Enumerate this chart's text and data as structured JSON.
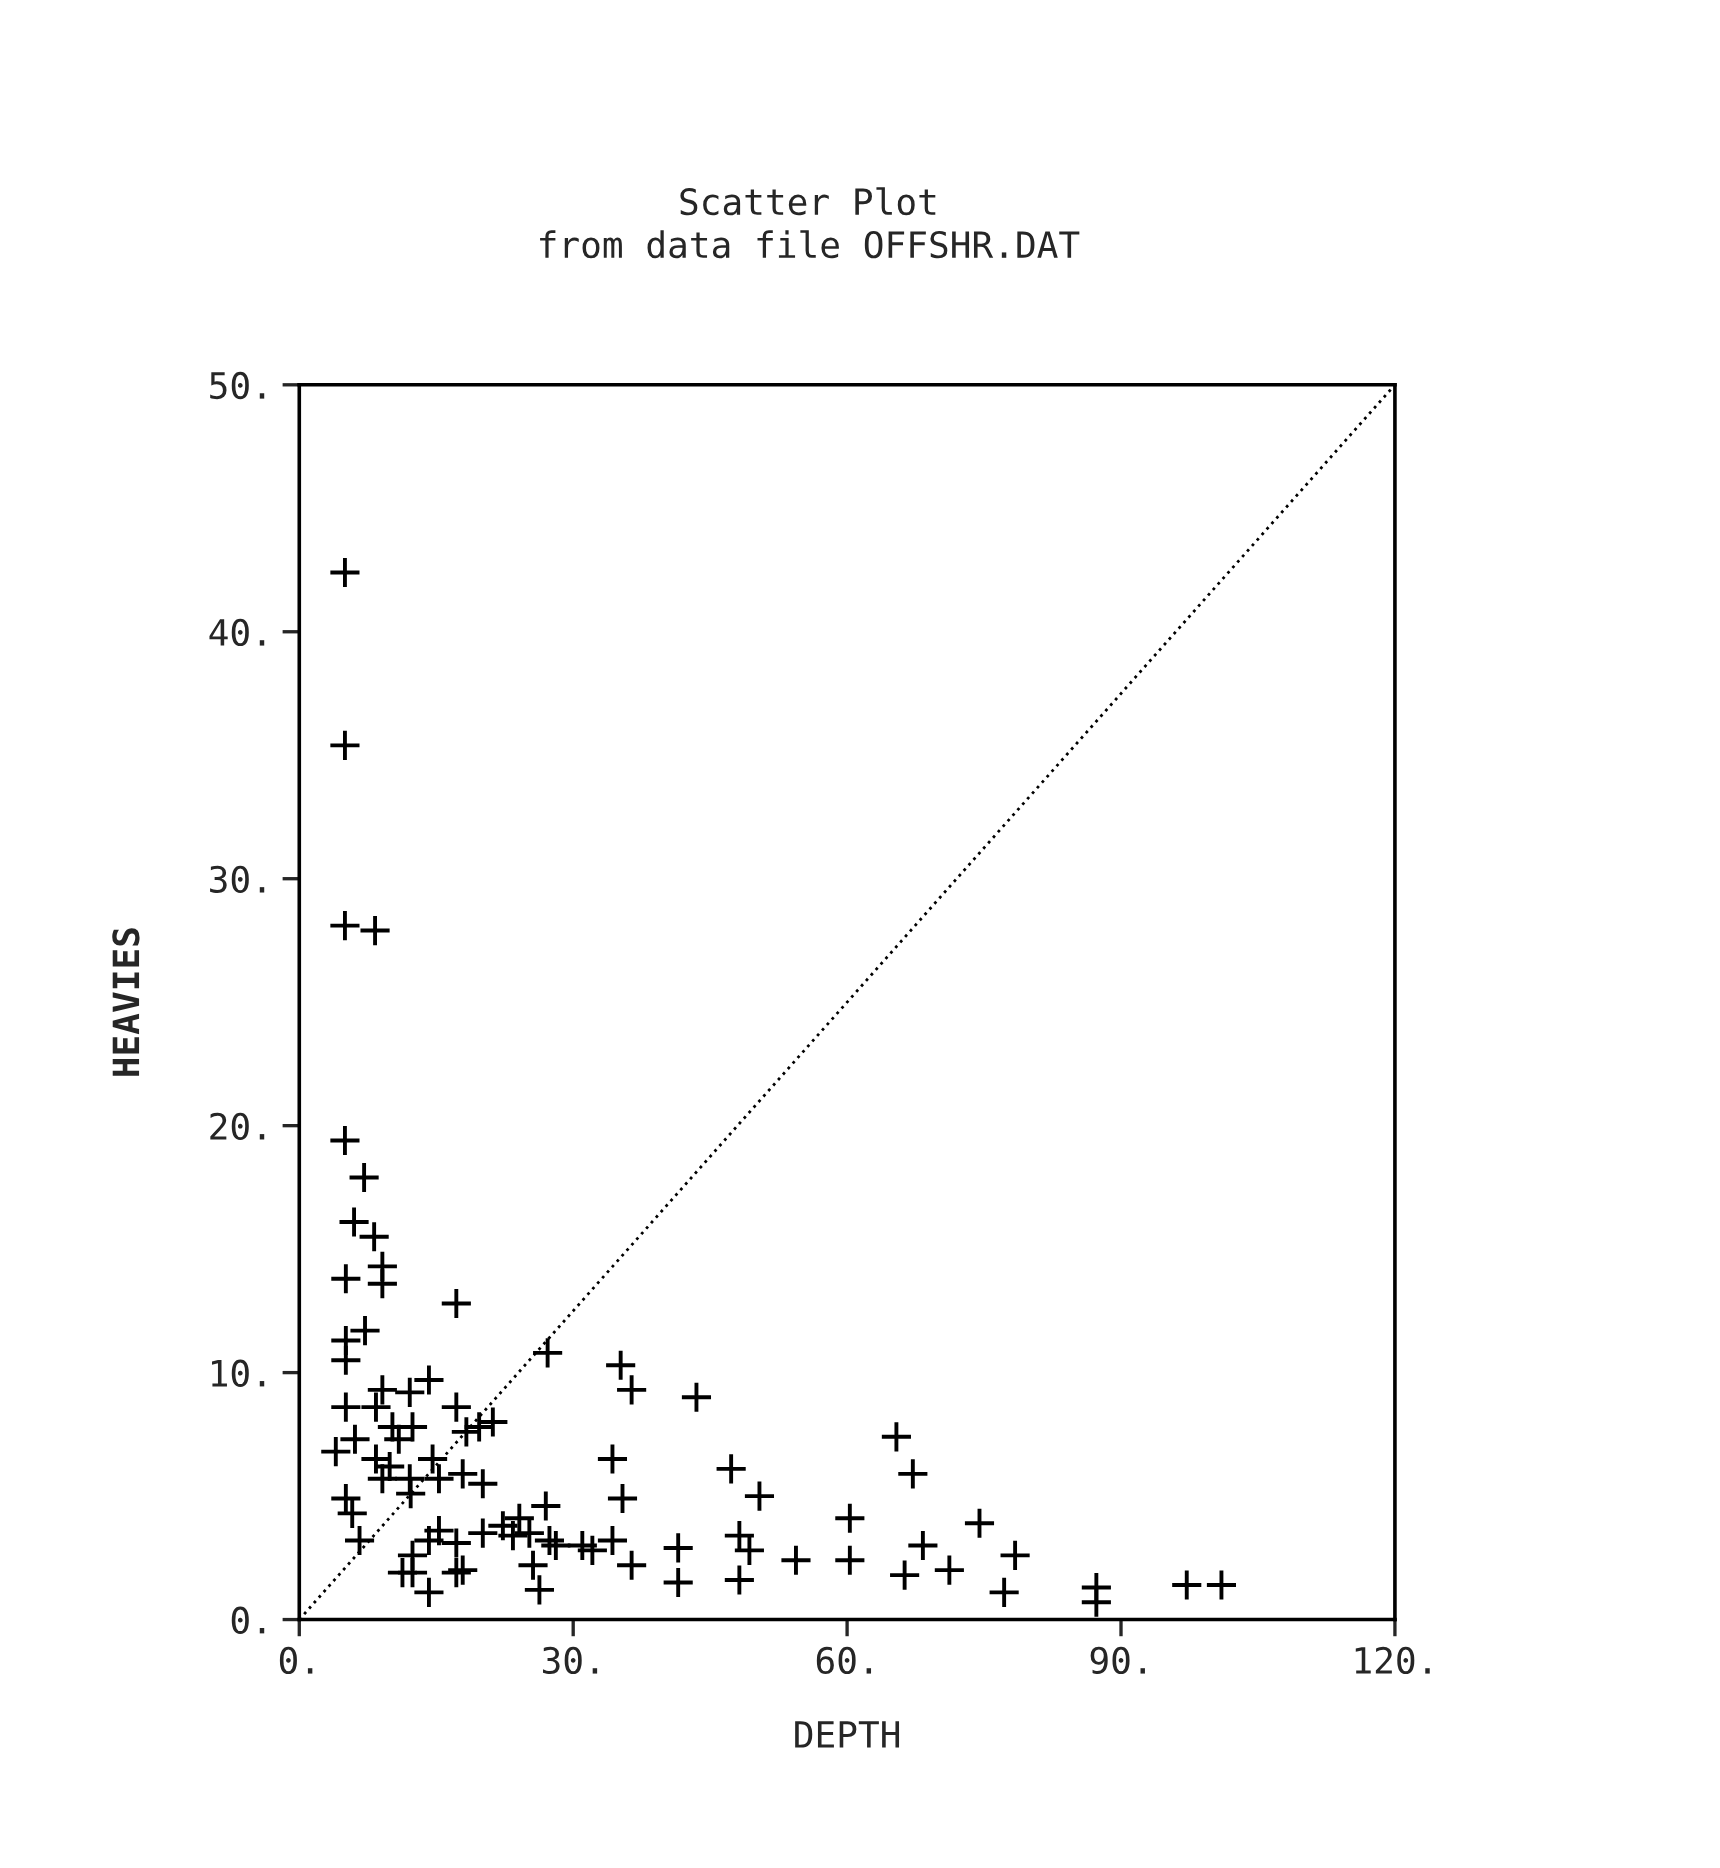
{
  "chart_data": {
    "type": "scatter",
    "title": "Scatter Plot",
    "subtitle": "from data file OFFSHR.DAT",
    "xlabel": "DEPTH",
    "ylabel": "HEAVIES",
    "xlim": [
      0,
      120
    ],
    "ylim": [
      0,
      50
    ],
    "xticks": [
      {
        "value": 0,
        "label": "0."
      },
      {
        "value": 30,
        "label": "30."
      },
      {
        "value": 60,
        "label": "60."
      },
      {
        "value": 90,
        "label": "90."
      },
      {
        "value": 120,
        "label": "120."
      }
    ],
    "yticks": [
      {
        "value": 0,
        "label": "0."
      },
      {
        "value": 10,
        "label": "10."
      },
      {
        "value": 20,
        "label": "20."
      },
      {
        "value": 30,
        "label": "30."
      },
      {
        "value": 40,
        "label": "40."
      },
      {
        "value": 50,
        "label": "50."
      }
    ],
    "grid": false,
    "legend": false,
    "series": [
      {
        "color": "#000000",
        "marker": "cross",
        "x": [
          5.0,
          5.0,
          5.0,
          8.3,
          5.0,
          7.1,
          6.0,
          8.2,
          9.1,
          9.1,
          5.1,
          17.2,
          7.2,
          5.1,
          5.1,
          27.2,
          35.2,
          36.4,
          9.1,
          14.2,
          12.1,
          5.1,
          17.2,
          8.4,
          6.1,
          4.0,
          10.2,
          10.9,
          12.4,
          8.4,
          9.9,
          18.3,
          19.7,
          21.2,
          14.6,
          9.1,
          12.1,
          15.3,
          17.9,
          20.1,
          34.3,
          12.2,
          5.1,
          5.8,
          35.4,
          6.6,
          15.3,
          17.2,
          14.2,
          20.1,
          22.3,
          24.1,
          23.4,
          25.2,
          27.0,
          27.4,
          28.1,
          25.6,
          26.3,
          31.0,
          32.1,
          34.3,
          36.4,
          11.3,
          12.4,
          12.4,
          14.2,
          17.2,
          17.9,
          41.5,
          41.5,
          43.5,
          47.3,
          50.4,
          48.2,
          49.3,
          48.2,
          54.4,
          60.3,
          60.3,
          65.4,
          67.2,
          66.3,
          68.3,
          71.2,
          74.5,
          78.4,
          77.2,
          87.3,
          87.3,
          97.2,
          101.0
        ],
        "values": [
          42.4,
          35.4,
          28.1,
          27.9,
          19.4,
          17.9,
          16.1,
          15.5,
          14.3,
          13.6,
          13.8,
          12.8,
          11.7,
          11.3,
          10.5,
          10.8,
          10.3,
          9.3,
          9.3,
          9.7,
          9.2,
          8.6,
          8.6,
          8.6,
          7.3,
          6.8,
          7.8,
          7.3,
          7.8,
          6.5,
          6.2,
          7.6,
          7.8,
          8.0,
          6.5,
          5.7,
          5.7,
          5.7,
          5.9,
          5.5,
          6.5,
          5.1,
          4.9,
          4.3,
          4.9,
          3.2,
          3.6,
          3.1,
          3.2,
          3.5,
          3.8,
          4.1,
          3.4,
          3.5,
          4.6,
          3.2,
          3.0,
          2.2,
          1.2,
          3.0,
          2.8,
          3.2,
          2.2,
          1.9,
          2.6,
          1.9,
          1.1,
          1.9,
          2.0,
          2.9,
          1.5,
          9.0,
          6.1,
          5.0,
          3.4,
          2.8,
          1.6,
          2.4,
          4.1,
          2.4,
          7.4,
          5.9,
          1.8,
          3.0,
          2.0,
          3.9,
          2.6,
          1.1,
          1.3,
          0.7,
          1.4,
          1.4
        ]
      },
      {
        "type": "line",
        "color": "#000000",
        "x": [
          0,
          120
        ],
        "values": [
          0,
          50
        ],
        "line_style": "dotted"
      }
    ]
  }
}
